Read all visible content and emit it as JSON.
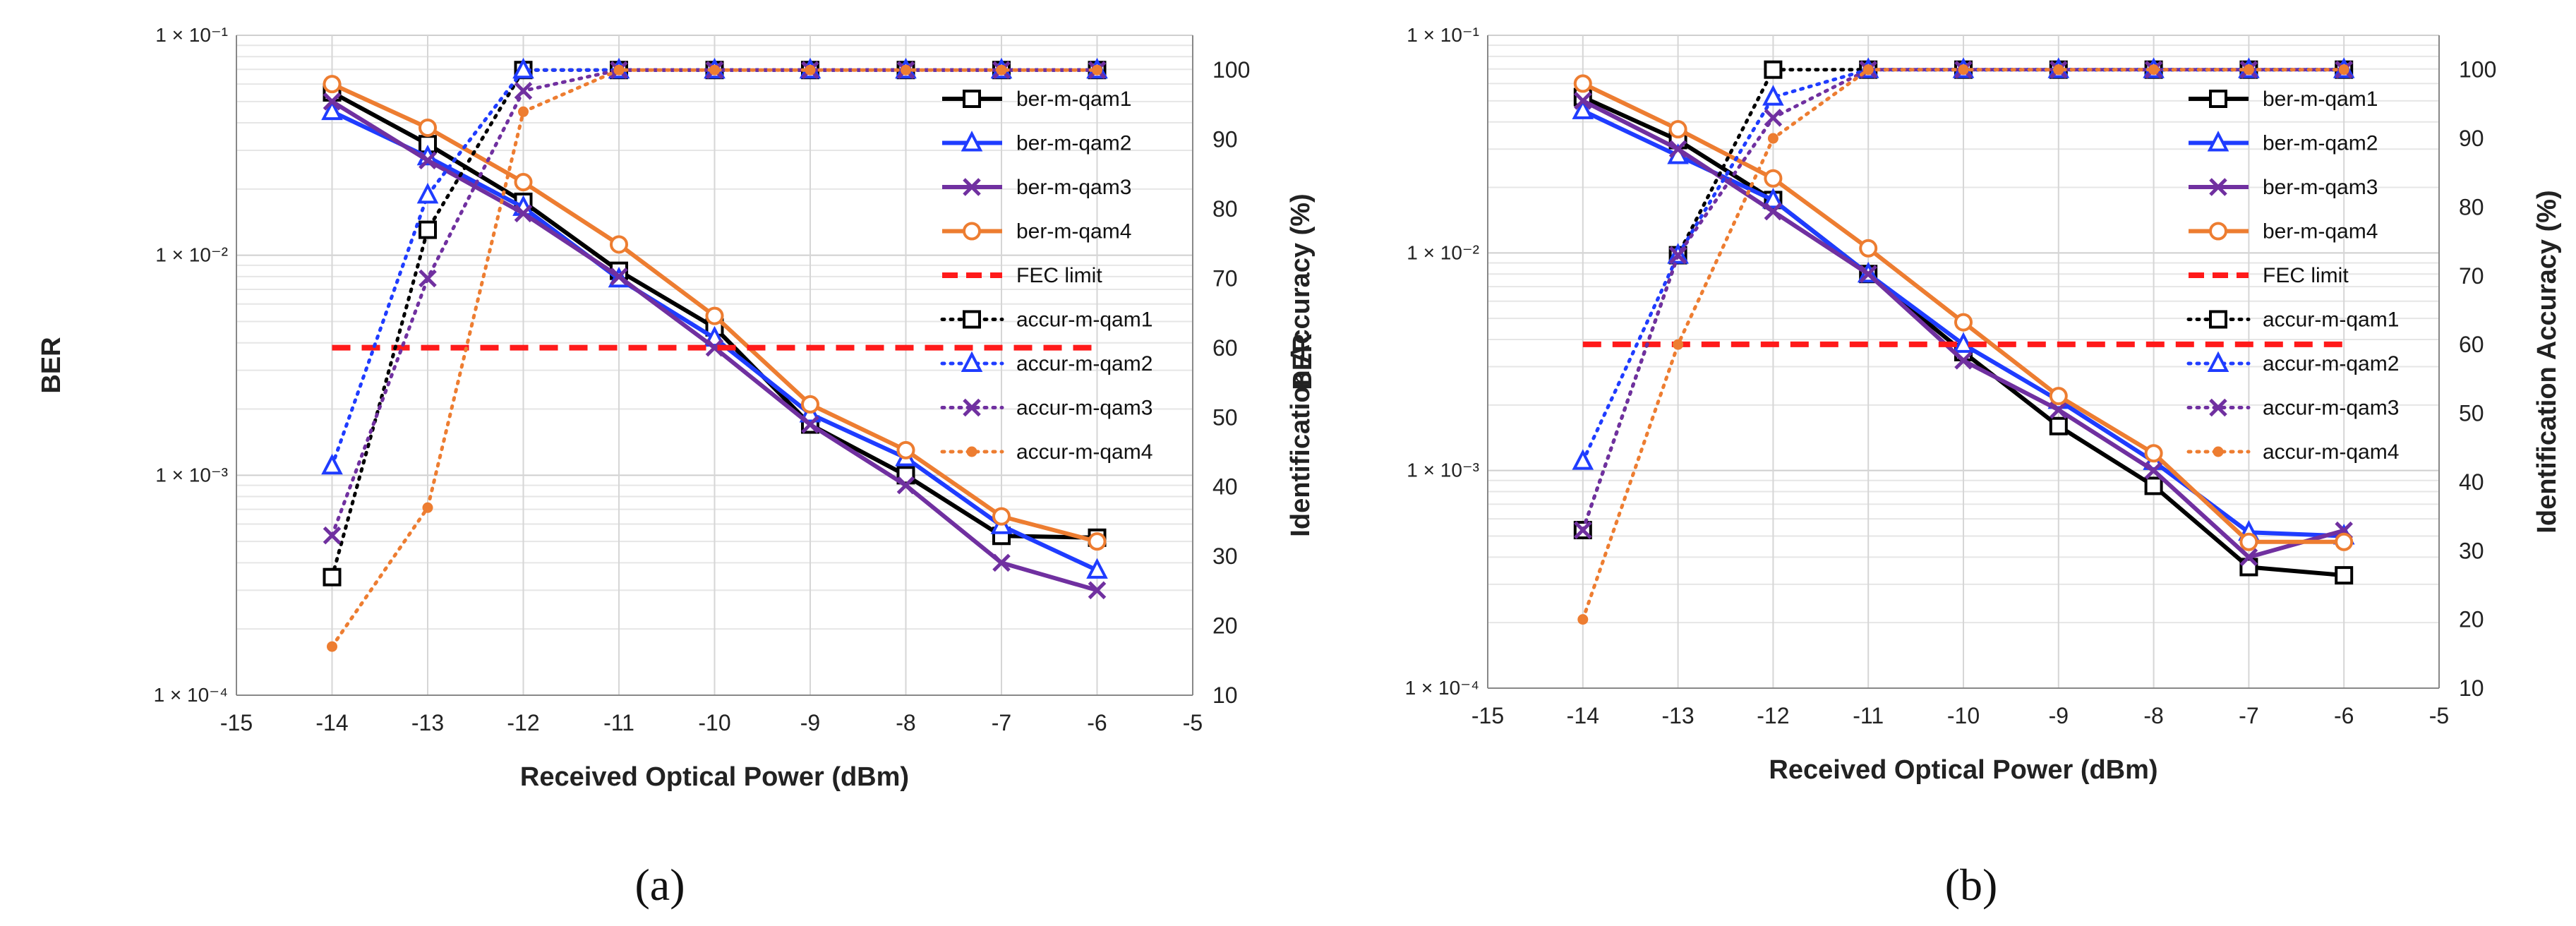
{
  "figure": {
    "captions": [
      "(a)",
      "(b)"
    ]
  },
  "chart_data": [
    {
      "id": "a",
      "type": "line",
      "caption": "(a)",
      "xlabel": "Received Optical Power (dBm)",
      "ylabel": "BER",
      "y2label": "Identification Accuracy (%)",
      "xlim": [
        -15,
        -5
      ],
      "xticks": [
        -15,
        -14,
        -13,
        -12,
        -11,
        -10,
        -9,
        -8,
        -7,
        -6,
        -5
      ],
      "yscale": "log",
      "ylim": [
        0.0001,
        0.1
      ],
      "yticks": [
        {
          "value": 0.1,
          "label": "1 × 10⁻¹"
        },
        {
          "value": 0.01,
          "label": "1 × 10⁻²"
        },
        {
          "value": 0.001,
          "label": "1 × 10⁻³"
        },
        {
          "value": 0.0001,
          "label": "1 × 10⁻⁴"
        }
      ],
      "y2lim": [
        10,
        105
      ],
      "y2ticks": [
        10,
        20,
        30,
        40,
        50,
        60,
        70,
        80,
        90,
        100
      ],
      "grid": true,
      "legend_position": "right",
      "series": [
        {
          "name": "ber-m-qam1",
          "axis": "left",
          "style": "solid",
          "color": "#000000",
          "marker": "square",
          "x": [
            -14,
            -13,
            -12,
            -11,
            -10,
            -9,
            -8,
            -7,
            -6
          ],
          "values": [
            0.055,
            0.032,
            0.0175,
            0.0085,
            0.0047,
            0.0017,
            0.001,
            0.00053,
            0.00052
          ]
        },
        {
          "name": "ber-m-qam2",
          "axis": "left",
          "style": "solid",
          "color": "#1f3cff",
          "marker": "triangle",
          "x": [
            -14,
            -13,
            -12,
            -11,
            -10,
            -9,
            -8,
            -7,
            -6
          ],
          "values": [
            0.045,
            0.028,
            0.0165,
            0.0078,
            0.0042,
            0.0019,
            0.0012,
            0.00059,
            0.00037
          ]
        },
        {
          "name": "ber-m-qam3",
          "axis": "left",
          "style": "solid",
          "color": "#7030a0",
          "marker": "x",
          "x": [
            -14,
            -13,
            -12,
            -11,
            -10,
            -9,
            -8,
            -7,
            -6
          ],
          "values": [
            0.05,
            0.027,
            0.0155,
            0.008,
            0.0038,
            0.0017,
            0.0009,
            0.0004,
            0.0003
          ]
        },
        {
          "name": "ber-m-qam4",
          "axis": "left",
          "style": "solid",
          "color": "#ed7d31",
          "marker": "circle",
          "x": [
            -14,
            -13,
            -12,
            -11,
            -10,
            -9,
            -8,
            -7,
            -6
          ],
          "values": [
            0.06,
            0.038,
            0.0215,
            0.0112,
            0.0053,
            0.0021,
            0.0013,
            0.00065,
            0.0005
          ]
        },
        {
          "name": "FEC limit",
          "axis": "left",
          "style": "dashed",
          "color": "#ff1a1a",
          "marker": "none",
          "x": [
            -14,
            -6
          ],
          "values": [
            0.0038,
            0.0038
          ]
        },
        {
          "name": "accur-m-qam1",
          "axis": "right",
          "style": "dotted",
          "color": "#000000",
          "marker": "square",
          "x": [
            -14,
            -13,
            -12,
            -11,
            -10,
            -9,
            -8,
            -7,
            -6
          ],
          "values": [
            27,
            77,
            100,
            100,
            100,
            100,
            100,
            100,
            100
          ]
        },
        {
          "name": "accur-m-qam2",
          "axis": "right",
          "style": "dotted",
          "color": "#1f3cff",
          "marker": "triangle",
          "x": [
            -14,
            -13,
            -12,
            -11,
            -10,
            -9,
            -8,
            -7,
            -6
          ],
          "values": [
            43,
            82,
            100,
            100,
            100,
            100,
            100,
            100,
            100
          ]
        },
        {
          "name": "accur-m-qam3",
          "axis": "right",
          "style": "dotted",
          "color": "#7030a0",
          "marker": "x",
          "x": [
            -14,
            -13,
            -12,
            -11,
            -10,
            -9,
            -8,
            -7,
            -6
          ],
          "values": [
            33,
            70,
            97,
            100,
            100,
            100,
            100,
            100,
            100
          ]
        },
        {
          "name": "accur-m-qam4",
          "axis": "right",
          "style": "dotted",
          "color": "#ed7d31",
          "marker": "dot",
          "x": [
            -14,
            -13,
            -12,
            -11,
            -10,
            -9,
            -8,
            -7,
            -6
          ],
          "values": [
            17,
            37,
            94,
            100,
            100,
            100,
            100,
            100,
            100
          ]
        }
      ]
    },
    {
      "id": "b",
      "type": "line",
      "caption": "(b)",
      "xlabel": "Received Optical Power (dBm)",
      "ylabel": "BER",
      "y2label": "Identification Accuracy (%)",
      "xlim": [
        -15,
        -5
      ],
      "xticks": [
        -15,
        -14,
        -13,
        -12,
        -11,
        -10,
        -9,
        -8,
        -7,
        -6,
        -5
      ],
      "yscale": "log",
      "ylim": [
        0.0001,
        0.1
      ],
      "yticks": [
        {
          "value": 0.1,
          "label": "1 × 10⁻¹"
        },
        {
          "value": 0.01,
          "label": "1 × 10⁻²"
        },
        {
          "value": 0.001,
          "label": "1 × 10⁻³"
        },
        {
          "value": 0.0001,
          "label": "1 × 10⁻⁴"
        }
      ],
      "y2lim": [
        10,
        105
      ],
      "y2ticks": [
        10,
        20,
        30,
        40,
        50,
        60,
        70,
        80,
        90,
        100
      ],
      "grid": true,
      "legend_position": "right",
      "series": [
        {
          "name": "ber-m-qam1",
          "axis": "left",
          "style": "solid",
          "color": "#000000",
          "marker": "square",
          "x": [
            -14,
            -13,
            -12,
            -11,
            -10,
            -9,
            -8,
            -7,
            -6
          ],
          "values": [
            0.052,
            0.033,
            0.0175,
            0.008,
            0.0035,
            0.0016,
            0.00085,
            0.00036,
            0.00033
          ]
        },
        {
          "name": "ber-m-qam2",
          "axis": "left",
          "style": "solid",
          "color": "#1f3cff",
          "marker": "triangle",
          "x": [
            -14,
            -13,
            -12,
            -11,
            -10,
            -9,
            -8,
            -7,
            -6
          ],
          "values": [
            0.045,
            0.028,
            0.0175,
            0.008,
            0.0038,
            0.0021,
            0.0011,
            0.00052,
            0.0005
          ]
        },
        {
          "name": "ber-m-qam3",
          "axis": "left",
          "style": "solid",
          "color": "#7030a0",
          "marker": "x",
          "x": [
            -14,
            -13,
            -12,
            -11,
            -10,
            -9,
            -8,
            -7,
            -6
          ],
          "values": [
            0.05,
            0.03,
            0.0155,
            0.008,
            0.0032,
            0.0019,
            0.001,
            0.0004,
            0.00053
          ]
        },
        {
          "name": "ber-m-qam4",
          "axis": "left",
          "style": "solid",
          "color": "#ed7d31",
          "marker": "circle",
          "x": [
            -14,
            -13,
            -12,
            -11,
            -10,
            -9,
            -8,
            -7,
            -6
          ],
          "values": [
            0.06,
            0.037,
            0.022,
            0.0105,
            0.0048,
            0.0022,
            0.0012,
            0.00047,
            0.00047
          ]
        },
        {
          "name": "FEC limit",
          "axis": "left",
          "style": "dashed",
          "color": "#ff1a1a",
          "marker": "none",
          "x": [
            -14,
            -6
          ],
          "values": [
            0.0038,
            0.0038
          ]
        },
        {
          "name": "accur-m-qam1",
          "axis": "right",
          "style": "dotted",
          "color": "#000000",
          "marker": "square",
          "x": [
            -14,
            -13,
            -12,
            -11,
            -10,
            -9,
            -8,
            -7,
            -6
          ],
          "values": [
            33,
            73,
            100,
            100,
            100,
            100,
            100,
            100,
            100
          ]
        },
        {
          "name": "accur-m-qam2",
          "axis": "right",
          "style": "dotted",
          "color": "#1f3cff",
          "marker": "triangle",
          "x": [
            -14,
            -13,
            -12,
            -11,
            -10,
            -9,
            -8,
            -7,
            -6
          ],
          "values": [
            43,
            73,
            96,
            100,
            100,
            100,
            100,
            100,
            100
          ]
        },
        {
          "name": "accur-m-qam3",
          "axis": "right",
          "style": "dotted",
          "color": "#7030a0",
          "marker": "x",
          "x": [
            -14,
            -13,
            -12,
            -11,
            -10,
            -9,
            -8,
            -7,
            -6
          ],
          "values": [
            33,
            73,
            93,
            100,
            100,
            100,
            100,
            100,
            100
          ]
        },
        {
          "name": "accur-m-qam4",
          "axis": "right",
          "style": "dotted",
          "color": "#ed7d31",
          "marker": "dot",
          "x": [
            -14,
            -13,
            -12,
            -11,
            -10,
            -9,
            -8,
            -7,
            -6
          ],
          "values": [
            20,
            60,
            90,
            100,
            100,
            100,
            100,
            100,
            100
          ]
        }
      ]
    }
  ]
}
